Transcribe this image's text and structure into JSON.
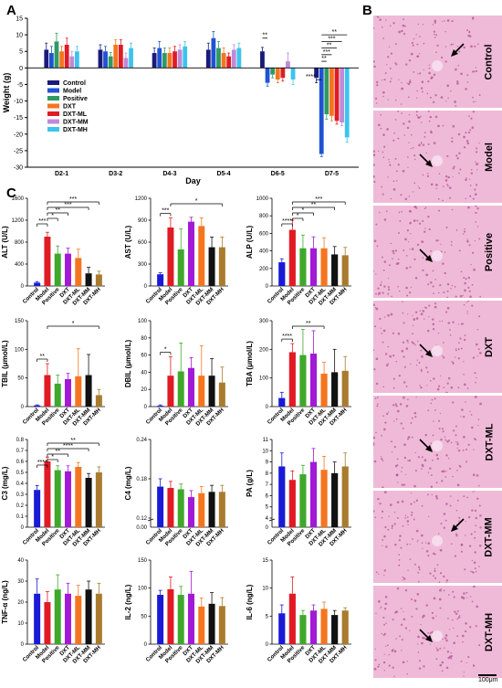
{
  "panels": {
    "a": "A",
    "b": "B",
    "c": "C"
  },
  "colors": {
    "Control": "#1a1a7a",
    "Model": "#1f53d3",
    "Positive": "#2e9a64",
    "DXT": "#f5751f",
    "DXT-ML": "#e01b24",
    "DXT-MM": "#c08ad8",
    "DXT-MH": "#3cc4ee",
    "tissue_bg": "#efbad8",
    "tissue_dot": "#b24f92"
  },
  "groups": [
    "Control",
    "Model",
    "Positive",
    "DXT",
    "DXT-ML",
    "DXT-MM",
    "DXT-MH"
  ],
  "small_groups": [
    "Control",
    "Model",
    "Positive",
    "DXT",
    "DXT-ML",
    "DXT-MM",
    "DXT-MH"
  ],
  "small_colors": [
    "#1a1ad6",
    "#e01b24",
    "#3ea82b",
    "#a21ad6",
    "#f5751f",
    "#111111",
    "#a97b2e"
  ],
  "chart_data": [
    {
      "id": "weight",
      "type": "bar",
      "title": "",
      "xlabel": "Day",
      "ylabel": "Weight (g)",
      "ylim": [
        -30,
        15
      ],
      "yticks": [
        -30,
        -25,
        -20,
        -15,
        -10,
        -5,
        0,
        5,
        10,
        15
      ],
      "categories": [
        "D2-1",
        "D3-2",
        "D4-3",
        "D5-4",
        "D6-5",
        "D7-5"
      ],
      "legend": "top-left",
      "series": [
        {
          "name": "Control",
          "values": [
            5.5,
            5.5,
            4.5,
            5.5,
            5.0,
            -3.0
          ]
        },
        {
          "name": "Model",
          "values": [
            4.5,
            5.0,
            6.0,
            9.0,
            -4.5,
            -26.0
          ]
        },
        {
          "name": "Positive",
          "values": [
            8.0,
            3.5,
            4.5,
            6.0,
            -2.0,
            -14.0
          ]
        },
        {
          "name": "DXT",
          "values": [
            5.0,
            7.0,
            4.5,
            4.5,
            -3.5,
            -14.5
          ]
        },
        {
          "name": "DXT-ML",
          "values": [
            7.0,
            7.0,
            5.0,
            3.5,
            -3.0,
            -16.0
          ]
        },
        {
          "name": "DXT-MM",
          "values": [
            3.5,
            3.0,
            5.5,
            5.5,
            2.0,
            -16.5
          ]
        },
        {
          "name": "DXT-MH",
          "values": [
            5.0,
            6.0,
            6.5,
            6.0,
            -3.5,
            -21.0
          ]
        }
      ],
      "error": [
        [
          2.0,
          1.5,
          1.5,
          2.0,
          1.2,
          1.5
        ],
        [
          2.0,
          1.5,
          2.0,
          2.0,
          1.0,
          0.8
        ],
        [
          2.5,
          1.2,
          1.5,
          2.0,
          1.0,
          1.5
        ],
        [
          1.5,
          1.5,
          1.5,
          1.5,
          1.0,
          1.5
        ],
        [
          2.0,
          1.5,
          1.5,
          1.0,
          1.0,
          1.0
        ],
        [
          1.5,
          1.5,
          1.5,
          1.5,
          2.5,
          1.0
        ],
        [
          1.5,
          1.5,
          1.5,
          1.5,
          1.5,
          1.5
        ]
      ],
      "significance": [
        "**",
        "****",
        "**",
        "***",
        "**",
        "***",
        "**"
      ]
    },
    {
      "id": "alt",
      "type": "bar",
      "ylabel": "ALT (U/L)",
      "ylim": [
        0,
        1600
      ],
      "yticks": [
        0,
        400,
        800,
        1200,
        1600
      ],
      "values": [
        60,
        900,
        590,
        590,
        510,
        230,
        210
      ],
      "error": [
        20,
        80,
        140,
        100,
        160,
        110,
        60
      ],
      "significance": [
        "***",
        "*",
        "**",
        "***",
        "***"
      ]
    },
    {
      "id": "ast",
      "type": "bar",
      "ylabel": "AST (U/L)",
      "ylim": [
        0,
        1200
      ],
      "yticks": [
        0,
        300,
        600,
        900,
        1200
      ],
      "values": [
        160,
        800,
        500,
        880,
        820,
        530,
        530
      ],
      "error": [
        20,
        130,
        280,
        60,
        110,
        140,
        140
      ],
      "significance": [
        "***",
        "*"
      ]
    },
    {
      "id": "alp",
      "type": "bar",
      "ylabel": "ALP (U/L)",
      "ylim": [
        0,
        1000
      ],
      "yticks": [
        0,
        200,
        400,
        600,
        800,
        1000
      ],
      "values": [
        270,
        640,
        430,
        430,
        430,
        360,
        350
      ],
      "error": [
        40,
        110,
        150,
        130,
        120,
        90,
        90
      ],
      "significance": [
        "****",
        "*",
        "*",
        "**",
        "***"
      ]
    },
    {
      "id": "tbil",
      "type": "bar",
      "ylabel": "TBIL (μmol/L)",
      "ylim": [
        0,
        150
      ],
      "yticks": [
        0,
        50,
        100,
        150
      ],
      "values": [
        2,
        55,
        40,
        48,
        53,
        55,
        20
      ],
      "error": [
        1,
        20,
        15,
        10,
        48,
        36,
        10
      ],
      "significance": [
        "**",
        "*"
      ]
    },
    {
      "id": "dbil",
      "type": "bar",
      "ylabel": "DBIL (μmol/L)",
      "ylim": [
        0,
        100
      ],
      "yticks": [
        0,
        20,
        40,
        60,
        80,
        100
      ],
      "values": [
        1,
        36,
        41,
        45,
        36,
        36,
        28
      ],
      "error": [
        1,
        22,
        33,
        12,
        35,
        20,
        18
      ],
      "significance": [
        "*"
      ]
    },
    {
      "id": "tba",
      "type": "bar",
      "ylabel": "TBA (μmol/L)",
      "ylim": [
        0,
        300
      ],
      "yticks": [
        0,
        100,
        200,
        300
      ],
      "values": [
        30,
        190,
        180,
        185,
        115,
        120,
        125
      ],
      "error": [
        20,
        30,
        90,
        80,
        40,
        80,
        50
      ],
      "significance": [
        "****",
        "**"
      ]
    },
    {
      "id": "c3",
      "type": "bar",
      "ylabel": "C3 (mg/L)",
      "ylim": [
        0,
        0.8
      ],
      "yticks": [
        0,
        0.1,
        0.2,
        0.3,
        0.4,
        0.5,
        0.6,
        0.7,
        0.8
      ],
      "values": [
        0.34,
        0.6,
        0.52,
        0.51,
        0.55,
        0.45,
        0.5
      ],
      "error": [
        0.04,
        0.04,
        0.04,
        0.05,
        0.04,
        0.04,
        0.05
      ],
      "significance": [
        "****",
        "*",
        "**",
        "****",
        "**"
      ]
    },
    {
      "id": "c4",
      "type": "bar",
      "ylabel": "C4 (mg/L)",
      "ylim": [
        0.12,
        0.24
      ],
      "yticks": [
        0.12,
        0.18,
        0.24
      ],
      "tick_labels": [
        "0.00",
        "0.12",
        "0.18",
        "0.24"
      ],
      "values": [
        0.168,
        0.166,
        0.164,
        0.152,
        0.158,
        0.16,
        0.16
      ],
      "error": [
        0.012,
        0.01,
        0.008,
        0.01,
        0.01,
        0.01,
        0.01
      ],
      "significance": []
    },
    {
      "id": "pa",
      "type": "bar",
      "ylabel": "PA (g/L)",
      "ylim": [
        4,
        11
      ],
      "yticks": [
        4,
        5,
        6,
        7,
        8,
        9,
        10,
        11
      ],
      "tick_labels": [
        "0",
        "4",
        "5",
        "6",
        "7",
        "8",
        "9",
        "10",
        "11"
      ],
      "values": [
        8.6,
        7.4,
        7.9,
        9.0,
        8.3,
        8.0,
        8.6
      ],
      "error": [
        1.2,
        0.8,
        0.8,
        1.2,
        1.2,
        1.0,
        1.2
      ],
      "significance": []
    },
    {
      "id": "tnf",
      "type": "bar",
      "ylabel": "TNF-α (ng/L)",
      "ylim": [
        0,
        40
      ],
      "yticks": [
        0,
        10,
        20,
        30,
        40
      ],
      "values": [
        24,
        20,
        26,
        24,
        23,
        26,
        24
      ],
      "error": [
        7,
        5,
        7,
        5,
        5,
        4,
        5
      ],
      "significance": []
    },
    {
      "id": "il2",
      "type": "bar",
      "ylabel": "IL-2 (ng/L)",
      "ylim": [
        0,
        150
      ],
      "yticks": [
        0,
        50,
        100,
        150
      ],
      "values": [
        88,
        98,
        88,
        90,
        67,
        72,
        68
      ],
      "error": [
        8,
        22,
        15,
        40,
        15,
        20,
        15
      ],
      "significance": []
    },
    {
      "id": "il6",
      "type": "bar",
      "ylabel": "IL-6 (ng/L)",
      "ylim": [
        0,
        15
      ],
      "yticks": [
        0,
        5,
        10,
        15
      ],
      "values": [
        5.5,
        9.0,
        5.2,
        6.0,
        6.3,
        5.2,
        6.0
      ],
      "error": [
        1.5,
        3.0,
        0.8,
        1.0,
        1.2,
        0.8,
        0.5
      ],
      "significance": []
    }
  ],
  "histology": {
    "labels": [
      "Control",
      "Model",
      "Positive",
      "DXT",
      "DXT-ML",
      "DXT-MM",
      "DXT-MH"
    ],
    "scale_bar": "100μm"
  }
}
